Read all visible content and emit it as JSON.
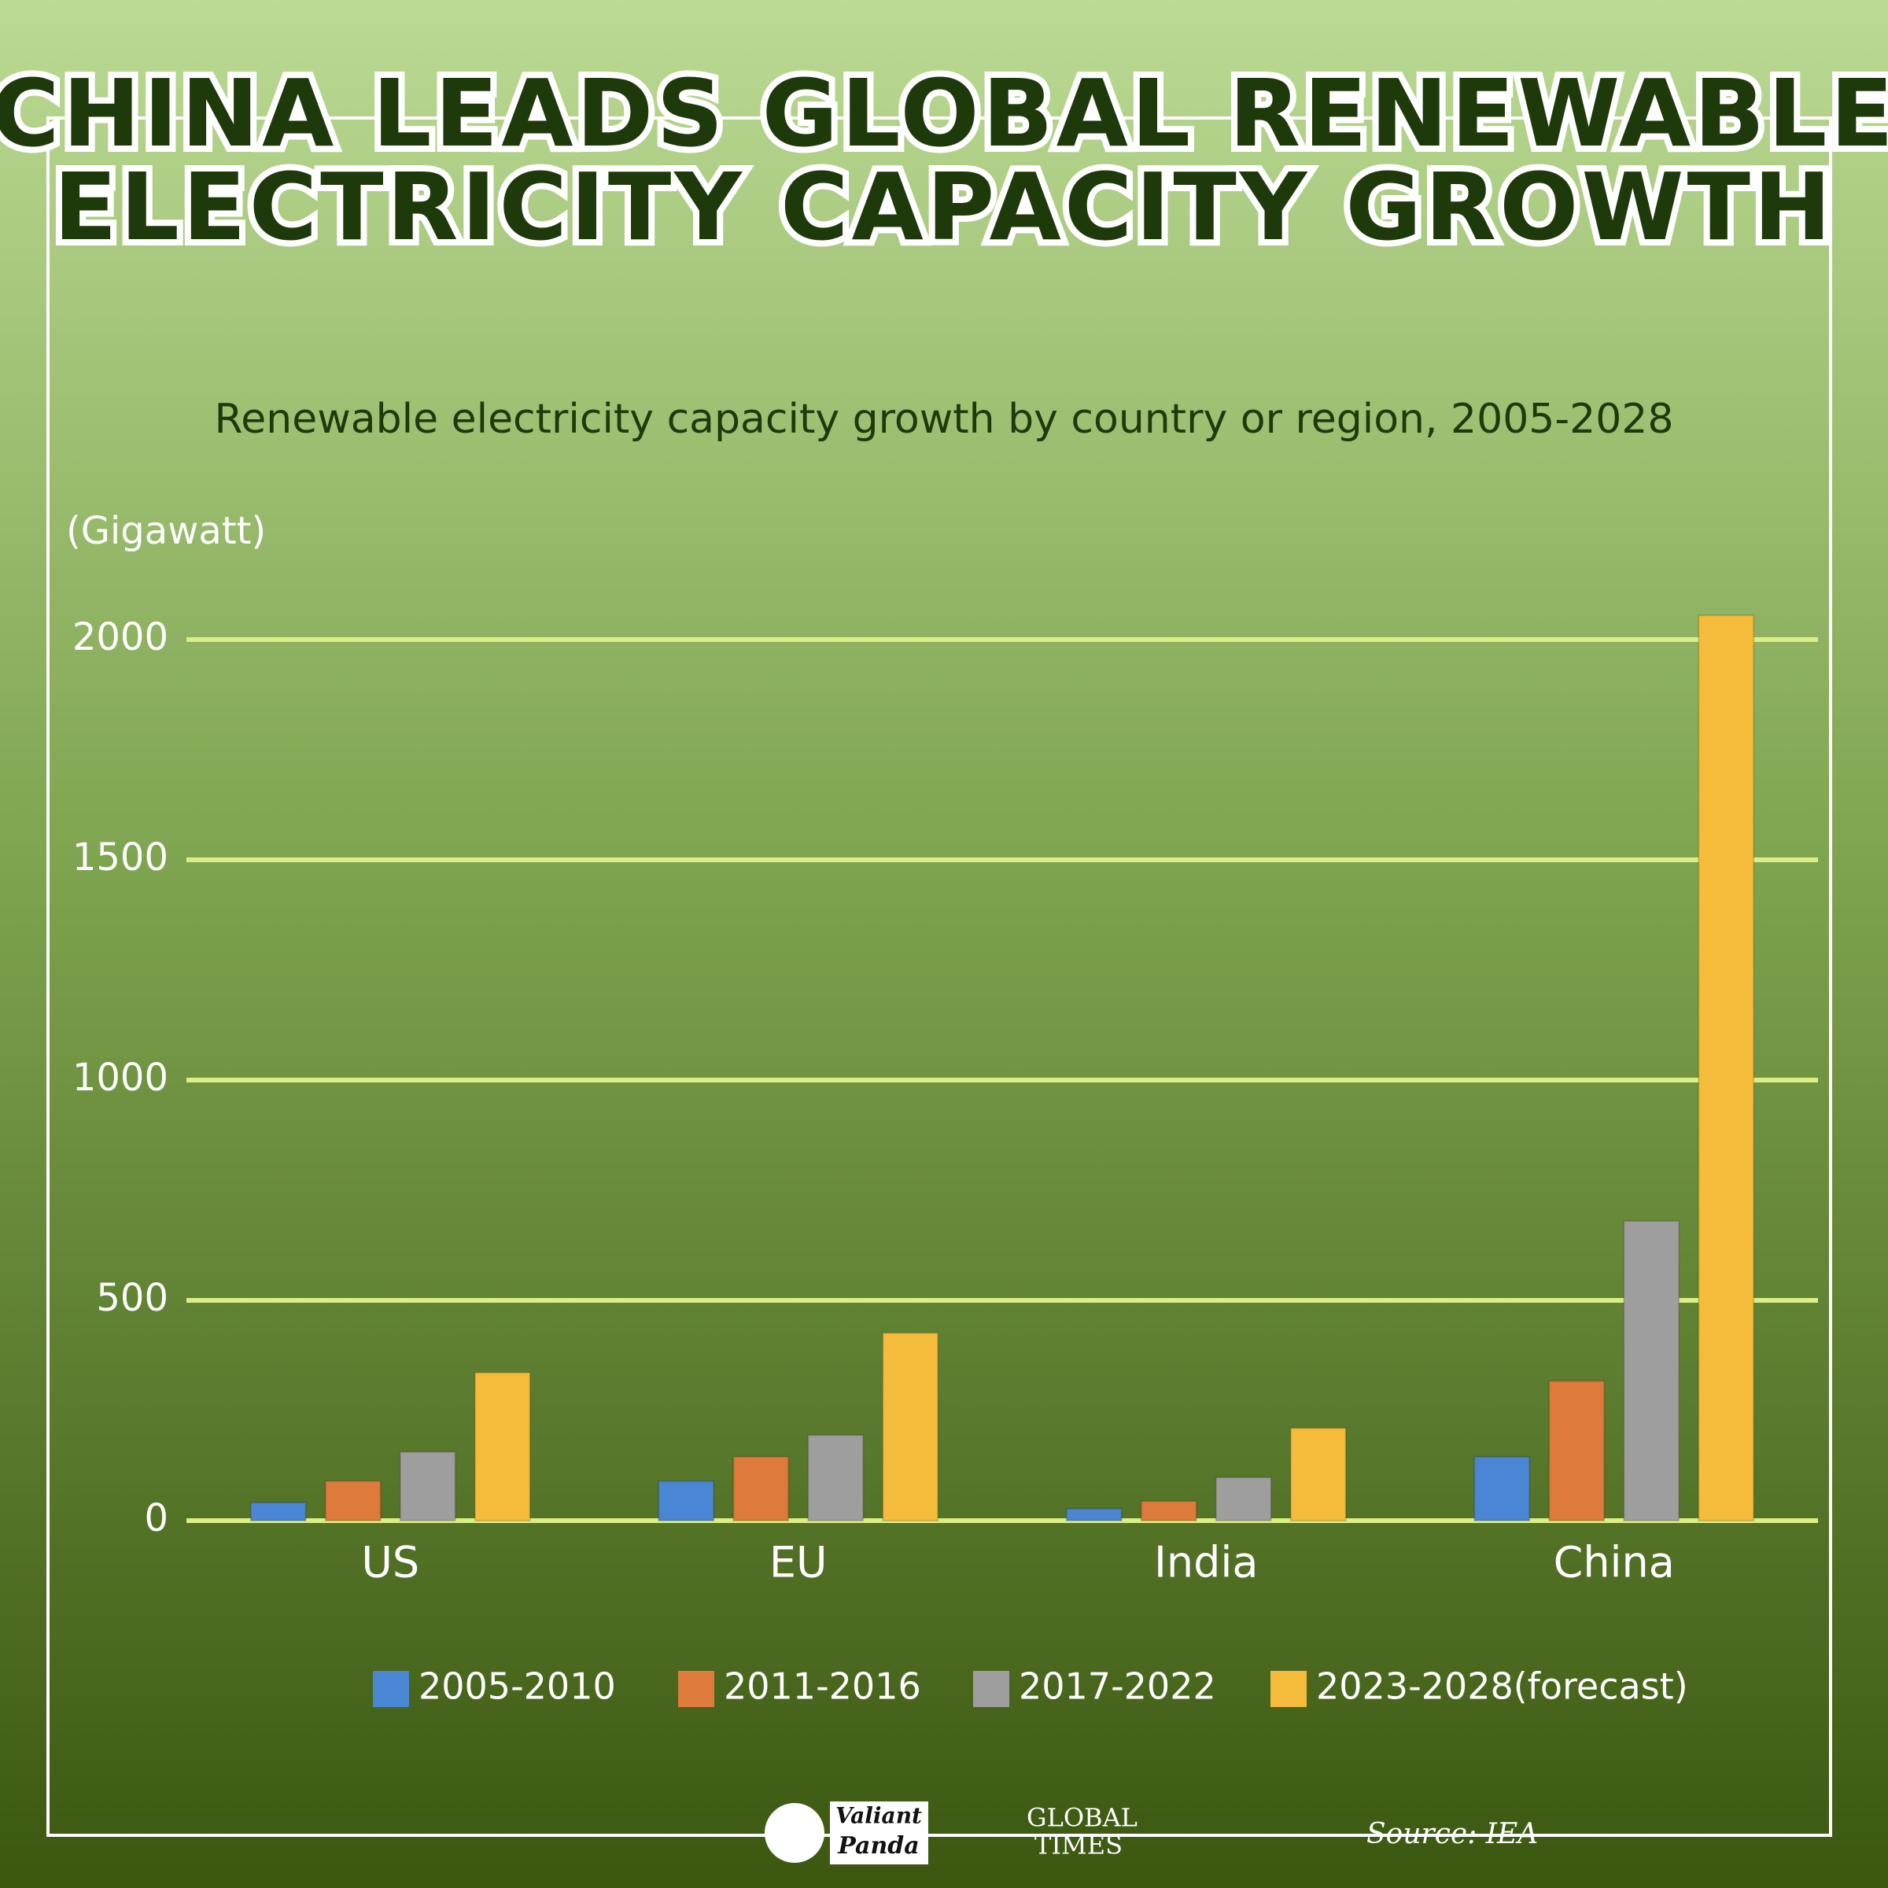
{
  "chart_data": {
    "type": "bar",
    "title": [
      "CHINA LEADS GLOBAL RENEWABLE",
      "ELECTRICITY CAPACITY GROWTH"
    ],
    "subtitle": "Renewable electricity capacity growth by country or region, 2005-2028",
    "y_label": "(Gigawatt)",
    "categories": [
      "US",
      "EU",
      "India",
      "China"
    ],
    "series": [
      {
        "name": "2005-2010",
        "color": "#4a86d4",
        "values": [
          41,
          90,
          27,
          145
        ]
      },
      {
        "name": "2011-2016",
        "color": "#dd7a3c",
        "values": [
          90,
          145,
          44,
          317
        ]
      },
      {
        "name": "2017-2022",
        "color": "#9e9e9e",
        "values": [
          156,
          194,
          98,
          680
        ]
      },
      {
        "name": "2023-2028(forecast)",
        "color": "#f5bb3a",
        "values": [
          336,
          426,
          210,
          2055
        ]
      }
    ],
    "ylim": [
      0,
      2100
    ],
    "yticks": [
      0,
      500,
      1000,
      1500,
      2000
    ],
    "grid": true,
    "grid_color": "#dcef86",
    "legend": "bottom",
    "source": "Source: IEA"
  },
  "footer": {
    "logos": [
      "Valiant",
      "Panda",
      "GLOBAL",
      "TIMES"
    ]
  }
}
